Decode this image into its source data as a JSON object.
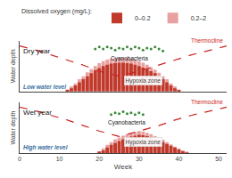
{
  "chart_data": [
    {
      "type": "bar",
      "title": "Dry year",
      "ylabel": "Water depth",
      "legend": "top",
      "legend_title": "Dissolved oxygen (mg/L):",
      "annotations": [
        "Hypoxia zone",
        "Low water level"
      ],
      "x": [
        1,
        2,
        3,
        4,
        5,
        6,
        7,
        8,
        9,
        10,
        11,
        12,
        13,
        14,
        15,
        16,
        17,
        18,
        19,
        20,
        21,
        22,
        23,
        24,
        25,
        26,
        27,
        28,
        29,
        30,
        31,
        32,
        33,
        34,
        35,
        36,
        37,
        38,
        39,
        40,
        41,
        42,
        43,
        44,
        45,
        46,
        47,
        48,
        49,
        50
      ],
      "xlim": [
        0,
        52
      ],
      "xticks": [
        0,
        10,
        20,
        30,
        40,
        50
      ],
      "ylim": [
        0,
        5.0
      ],
      "yticks": [],
      "grid": false,
      "tick_labels": false,
      "series": [
        {
          "name": "0.2–2",
          "type": "bar",
          "color": "#e8a0a0",
          "values": [
            0,
            0,
            0,
            0,
            0,
            0,
            0,
            0,
            0,
            0,
            0,
            0.2,
            0.5,
            0.8,
            1.2,
            1.5,
            1.9,
            2.2,
            2.5,
            2.8,
            3.0,
            3.15,
            3.25,
            3.3,
            3.35,
            3.35,
            3.3,
            3.25,
            3.15,
            3.0,
            2.85,
            2.65,
            2.4,
            2.15,
            1.85,
            1.5,
            1.2,
            0.8,
            0.5,
            0.2,
            0,
            0,
            0,
            0,
            0,
            0,
            0,
            0,
            0,
            0
          ]
        },
        {
          "name": "0–0.2",
          "type": "bar",
          "color": "#c0392b",
          "values": [
            0,
            0,
            0,
            0,
            0,
            0,
            0,
            0,
            0,
            0,
            0,
            0.1,
            0.3,
            0.6,
            0.9,
            1.2,
            1.5,
            1.8,
            2.1,
            2.3,
            2.5,
            2.65,
            2.75,
            2.8,
            2.85,
            2.85,
            2.8,
            2.75,
            2.65,
            2.5,
            2.35,
            2.2,
            2.0,
            1.8,
            1.5,
            1.2,
            0.9,
            0.6,
            0.3,
            0.1,
            0,
            0,
            0,
            0,
            0,
            0,
            0,
            0,
            0,
            0
          ]
        },
        {
          "label": "Thermocline",
          "type": "line",
          "line_style": "dashed",
          "color": "#cc2222",
          "x": [
            0,
            2,
            5,
            8,
            12,
            16,
            20,
            25,
            30,
            35,
            39,
            43,
            47,
            50,
            52
          ],
          "values": [
            4.5,
            4.3,
            4.0,
            3.6,
            3.1,
            2.6,
            2.0,
            1.5,
            2.0,
            2.6,
            3.1,
            3.6,
            4.0,
            4.3,
            4.5
          ]
        },
        {
          "label": "Cyanobacteria",
          "type": "scatter",
          "marker": "circle",
          "color": "#3a8a3a",
          "x": [
            19,
            20,
            21,
            22,
            23,
            24,
            25,
            26,
            27,
            28,
            29,
            30,
            31,
            32,
            33,
            34,
            35,
            36
          ],
          "values": [
            4.2,
            4.4,
            4.2,
            4.4,
            4.3,
            4.1,
            4.3,
            4.2,
            4.4,
            4.2,
            4.4,
            4.3,
            4.1,
            4.3,
            4.2,
            4.4,
            4.2,
            4.0
          ]
        }
      ]
    },
    {
      "type": "bar",
      "title": "Wet year",
      "xlabel": "Week",
      "ylabel": "Water depth",
      "annotations": [
        "Hypoxia zone",
        "High water level"
      ],
      "x": [
        1,
        2,
        3,
        4,
        5,
        6,
        7,
        8,
        9,
        10,
        11,
        12,
        13,
        14,
        15,
        16,
        17,
        18,
        19,
        20,
        21,
        22,
        23,
        24,
        25,
        26,
        27,
        28,
        29,
        30,
        31,
        32,
        33,
        34,
        35,
        36,
        37,
        38,
        39,
        40,
        41,
        42,
        43,
        44,
        45,
        46,
        47,
        48,
        49,
        50
      ],
      "xlim": [
        0,
        52
      ],
      "xticks": [
        0,
        10,
        20,
        30,
        40,
        50
      ],
      "ylim": [
        0,
        5.5
      ],
      "yticks": [],
      "grid": false,
      "tick_labels": "x",
      "series": [
        {
          "name": "0.2–2",
          "type": "bar",
          "color": "#e8a0a0",
          "values": [
            0,
            0,
            0,
            0,
            0,
            0,
            0,
            0,
            0,
            0,
            0,
            0,
            0,
            0,
            0,
            0,
            0,
            0,
            0,
            0.2,
            0.5,
            0.9,
            1.2,
            1.5,
            1.7,
            1.9,
            2.05,
            2.2,
            2.3,
            2.4,
            2.35,
            2.2,
            2.05,
            1.85,
            1.65,
            1.45,
            1.2,
            0.95,
            0.7,
            0.5,
            0.3,
            0.1,
            0,
            0,
            0,
            0,
            0,
            0,
            0,
            0
          ]
        },
        {
          "name": "0–0.2",
          "type": "bar",
          "color": "#c0392b",
          "values": [
            0,
            0,
            0,
            0,
            0,
            0,
            0,
            0,
            0,
            0,
            0,
            0,
            0,
            0,
            0,
            0,
            0,
            0,
            0,
            0.1,
            0.3,
            0.6,
            0.9,
            1.1,
            1.3,
            1.5,
            1.65,
            1.8,
            1.9,
            2.0,
            1.95,
            1.85,
            1.7,
            1.55,
            1.4,
            1.2,
            1.0,
            0.8,
            0.6,
            0.4,
            0.2,
            0.05,
            0,
            0,
            0,
            0,
            0,
            0,
            0,
            0
          ]
        },
        {
          "label": "Thermocline",
          "type": "line",
          "line_style": "dashed",
          "color": "#cc2222",
          "x": [
            0,
            2,
            5,
            8,
            12,
            16,
            20,
            25,
            30,
            35,
            39,
            43,
            47,
            50,
            52
          ],
          "values": [
            5.0,
            4.8,
            4.5,
            4.1,
            3.6,
            3.0,
            2.4,
            1.8,
            2.4,
            3.0,
            3.6,
            4.1,
            4.5,
            4.8,
            5.0
          ]
        },
        {
          "label": "Cyanobacteria",
          "type": "scatter",
          "marker": "circle",
          "color": "#3a8a3a",
          "x": [
            23,
            24,
            25,
            26,
            27,
            28,
            29,
            30,
            31
          ],
          "values": [
            4.2,
            4.4,
            4.3,
            4.5,
            4.3,
            4.4,
            4.2,
            4.4,
            4.2
          ]
        }
      ]
    }
  ]
}
